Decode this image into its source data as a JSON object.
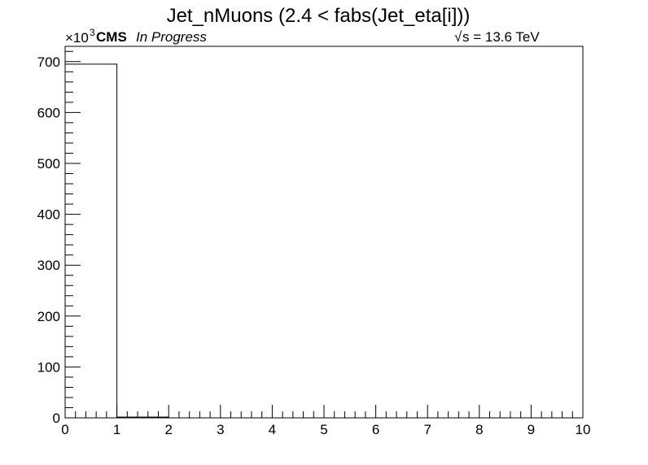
{
  "chart_data": {
    "type": "bar",
    "title": "Jet_nMuons (2.4 < fabs(Jet_eta[i]))",
    "xlabel": "",
    "ylabel": "",
    "xlim": [
      0,
      10
    ],
    "ylim": [
      0,
      730
    ],
    "bins": [
      {
        "low": 0,
        "high": 1,
        "value": 695
      },
      {
        "low": 1,
        "high": 2,
        "value": 1.5
      }
    ],
    "x_ticks": [
      "0",
      "1",
      "2",
      "3",
      "4",
      "5",
      "6",
      "7",
      "8",
      "9",
      "10"
    ],
    "y_ticks": [
      "0",
      "100",
      "200",
      "300",
      "400",
      "500",
      "600",
      "700"
    ],
    "y_multiplier_base": "×10",
    "y_multiplier_exp": "3",
    "grid": false,
    "legend": "none"
  },
  "labels": {
    "experiment": "CMS",
    "status": "In Progress",
    "energy": "s = 13.6 TeV",
    "sqrt_symbol": "√"
  },
  "colors": {
    "axis": "#000000",
    "histogram_line": "#000000",
    "background": "#ffffff"
  }
}
